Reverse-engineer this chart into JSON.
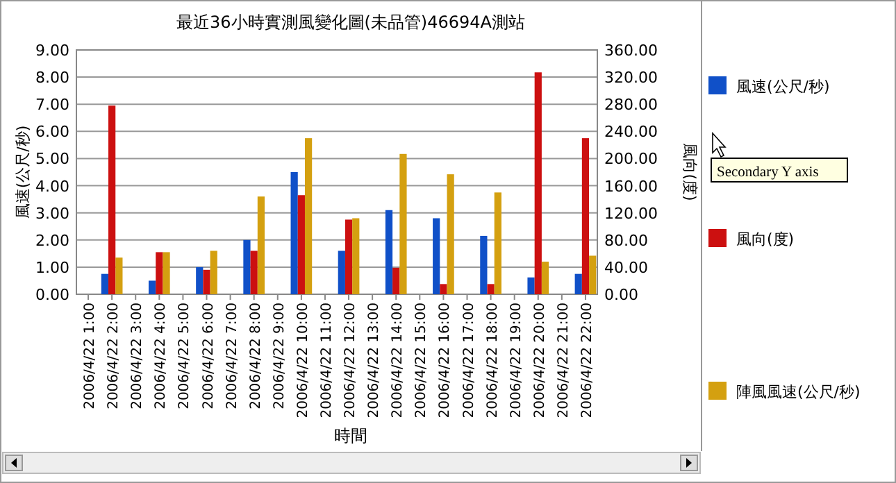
{
  "chart_data": {
    "type": "bar",
    "title": "最近36小時實測風變化圖(未品管)46694A測站",
    "xlabel": "時間",
    "ylabel": "風速(公尺/秒)",
    "y2label": "風向(度)",
    "categories": [
      "2006/4/22 1:00",
      "2006/4/22 2:00",
      "2006/4/22 3:00",
      "2006/4/22 4:00",
      "2006/4/22 5:00",
      "2006/4/22 6:00",
      "2006/4/22 7:00",
      "2006/4/22 8:00",
      "2006/4/22 9:00",
      "2006/4/22 10:00",
      "2006/4/22 11:00",
      "2006/4/22 12:00",
      "2006/4/22 13:00",
      "2006/4/22 14:00",
      "2006/4/22 15:00",
      "2006/4/22 16:00",
      "2006/4/22 17:00",
      "2006/4/22 18:00",
      "2006/4/22 19:00",
      "2006/4/22 20:00",
      "2006/4/22 21:00",
      "2006/4/22 22:00"
    ],
    "series": [
      {
        "name": "風速(公尺/秒)",
        "color": "#1050c8",
        "values": [
          null,
          0.75,
          null,
          0.5,
          null,
          1.0,
          null,
          2.0,
          null,
          4.5,
          null,
          1.6,
          null,
          3.1,
          null,
          2.8,
          null,
          2.15,
          null,
          0.62,
          null,
          0.75
        ]
      },
      {
        "name": "風向(度)",
        "color": "#cc1010",
        "axis": "y2",
        "values": [
          null,
          278,
          null,
          62,
          null,
          36,
          null,
          64,
          null,
          146,
          null,
          110,
          null,
          39,
          null,
          15,
          null,
          15,
          null,
          327,
          null,
          230
        ]
      },
      {
        "name": "陣風風速(公尺/秒)",
        "color": "#d4a010",
        "values": [
          null,
          1.35,
          null,
          1.55,
          null,
          1.6,
          null,
          3.6,
          null,
          5.75,
          null,
          2.8,
          null,
          5.17,
          null,
          4.42,
          null,
          3.75,
          null,
          1.2,
          null,
          1.42
        ]
      }
    ],
    "ylim": [
      0,
      9
    ],
    "yticks": [
      {
        "value": 0,
        "label": "0.00"
      },
      {
        "value": 1,
        "label": "1.00"
      },
      {
        "value": 2,
        "label": "2.00"
      },
      {
        "value": 3,
        "label": "3.00"
      },
      {
        "value": 4,
        "label": "4.00"
      },
      {
        "value": 5,
        "label": "5.00"
      },
      {
        "value": 6,
        "label": "6.00"
      },
      {
        "value": 7,
        "label": "7.00"
      },
      {
        "value": 8,
        "label": "8.00"
      },
      {
        "value": 9,
        "label": "9.00"
      }
    ],
    "y2lim": [
      0,
      360
    ],
    "y2ticks": [
      {
        "value": 0,
        "label": "0.00"
      },
      {
        "value": 40,
        "label": "40.00"
      },
      {
        "value": 80,
        "label": "80.00"
      },
      {
        "value": 120,
        "label": "120.00"
      },
      {
        "value": 160,
        "label": "160.00"
      },
      {
        "value": 200,
        "label": "200.00"
      },
      {
        "value": 240,
        "label": "240.00"
      },
      {
        "value": 280,
        "label": "280.00"
      },
      {
        "value": 320,
        "label": "320.00"
      },
      {
        "value": 360,
        "label": "360.00"
      }
    ],
    "grid": "y",
    "legend": "right",
    "annotations": [
      "Secondary Y axis"
    ]
  }
}
